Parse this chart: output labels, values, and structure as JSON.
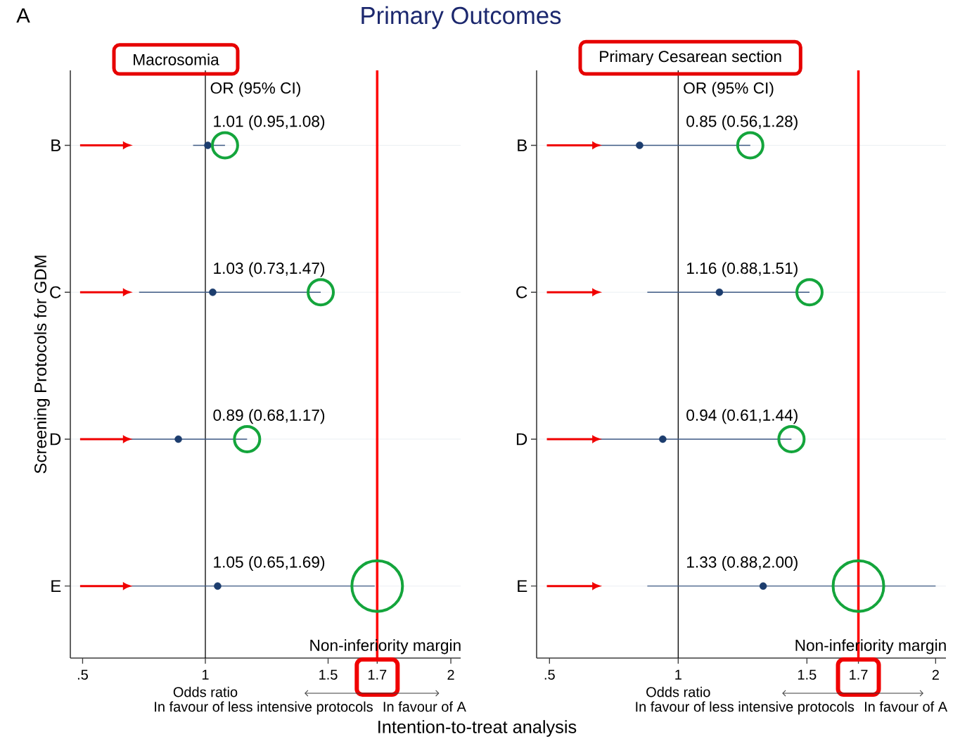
{
  "chart_data": [
    {
      "type": "scatter",
      "orientation": "horizontal",
      "title": "Macrosomia",
      "xlabel": "Odds ratio",
      "ylabel": "Screening Protocols for GDM",
      "categories": [
        "B",
        "C",
        "D",
        "E"
      ],
      "values": [
        1.01,
        1.03,
        0.89,
        1.05
      ],
      "errors": [
        [
          0.95,
          1.08
        ],
        [
          0.73,
          1.47
        ],
        [
          0.68,
          1.17
        ],
        [
          0.65,
          1.69
        ]
      ],
      "value_labels": [
        "1.01 (0.95,1.08)",
        "1.03 (0.73,1.47)",
        "0.89 (0.68,1.17)",
        "1.05 (0.65,1.69)"
      ],
      "color": "#1c3d6e",
      "grid": "y",
      "xlim": [
        0.45,
        2.04
      ],
      "xticks": [
        {
          "value": 0.5,
          "label": ".5"
        },
        1,
        1.5,
        1.7,
        2
      ],
      "ref_lines": [
        {
          "axis": "x",
          "value": 1
        },
        {
          "axis": "x",
          "value": 1.7,
          "label": "Non-inferiority margin",
          "color": "#ff0000"
        }
      ],
      "annotations": [
        "OR (95% CI)",
        "In favour of less intensive protocols",
        "In favour of A",
        "A",
        "Primary Outcomes",
        "Intention-to-treat analysis"
      ]
    },
    {
      "type": "scatter",
      "orientation": "horizontal",
      "title": "Primary Cesarean section",
      "xlabel": "Odds ratio",
      "categories": [
        "B",
        "C",
        "D",
        "E"
      ],
      "values": [
        0.85,
        1.16,
        0.94,
        1.33
      ],
      "errors": [
        [
          0.56,
          1.28
        ],
        [
          0.88,
          1.51
        ],
        [
          0.61,
          1.44
        ],
        [
          0.88,
          2.0
        ]
      ],
      "value_labels": [
        "0.85 (0.56,1.28)",
        "1.16 (0.88,1.51)",
        "0.94 (0.61,1.44)",
        "1.33 (0.88,2.00)"
      ],
      "color": "#1c3d6e",
      "grid": "y",
      "xlim": [
        0.45,
        2.04
      ],
      "xticks": [
        {
          "value": 0.5,
          "label": ".5"
        },
        1,
        1.5,
        1.7,
        2
      ],
      "ref_lines": [
        {
          "axis": "x",
          "value": 1
        },
        {
          "axis": "x",
          "value": 1.7,
          "label": "Non-inferiority margin",
          "color": "#ff0000"
        }
      ],
      "annotations": [
        "OR (95% CI)",
        "In favour of less intensive protocols",
        "In favour of A"
      ]
    }
  ]
}
